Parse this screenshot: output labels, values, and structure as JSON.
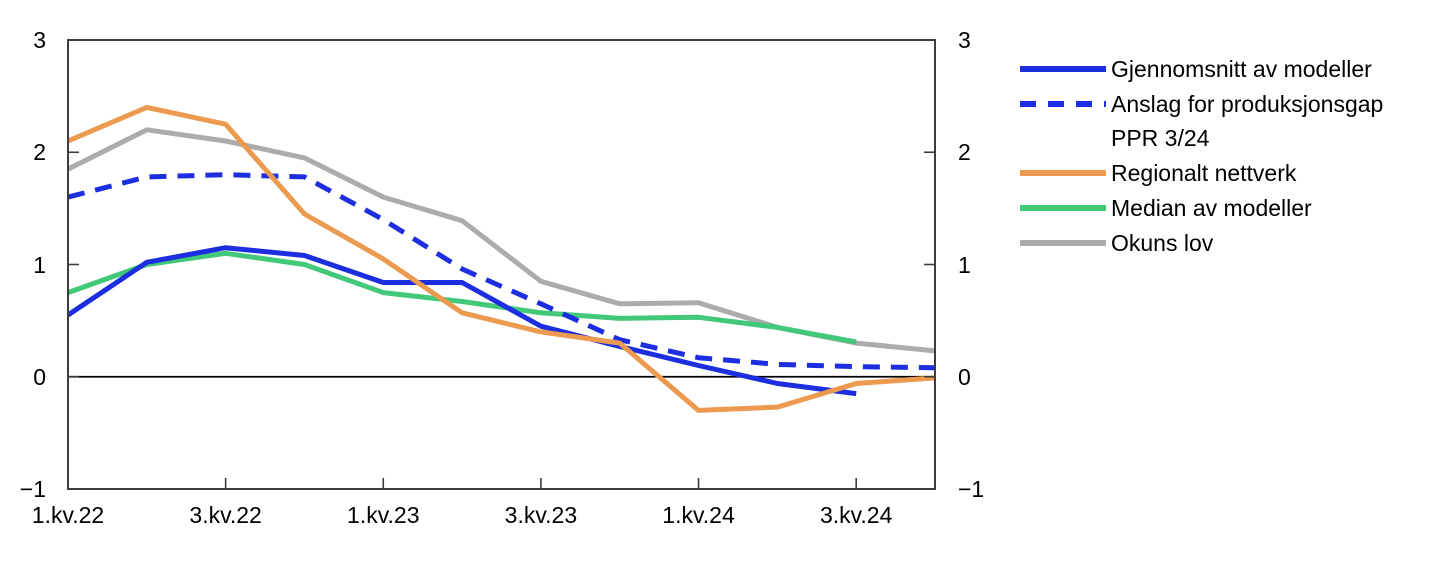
{
  "figure": {
    "background": "#ffffff",
    "axis_color": "#3d3d3d",
    "zero_line_color": "#000000",
    "text_color": "#000000"
  },
  "chart_data": {
    "type": "line",
    "title": "",
    "xlabel": "",
    "ylabel": "",
    "ylim": [
      -1,
      3
    ],
    "grid": false,
    "zero_line": true,
    "legend_position": "right",
    "x_quarters": [
      "1.kv.22",
      "2.kv.22",
      "3.kv.22",
      "4.kv.22",
      "1.kv.23",
      "2.kv.23",
      "3.kv.23",
      "4.kv.23",
      "1.kv.24",
      "2.kv.24",
      "3.kv.24",
      "4.kv.24"
    ],
    "x_ticks": [
      {
        "index": 0,
        "label": "1.kv.22"
      },
      {
        "index": 2,
        "label": "3.kv.22"
      },
      {
        "index": 4,
        "label": "1.kv.23"
      },
      {
        "index": 6,
        "label": "3.kv.23"
      },
      {
        "index": 8,
        "label": "1.kv.24"
      },
      {
        "index": 10,
        "label": "3.kv.24"
      }
    ],
    "y_ticks": [
      {
        "value": 3,
        "label": "3"
      },
      {
        "value": 2,
        "label": "2"
      },
      {
        "value": 1,
        "label": "1"
      },
      {
        "value": 0,
        "label": "0"
      },
      {
        "value": -1,
        "label": "−1"
      }
    ],
    "y_axis_sides": [
      "left",
      "right"
    ],
    "series": [
      {
        "name": "Gjennomsnitt av modeller",
        "label_lines": [
          "Gjennomsnitt av modeller"
        ],
        "color": "#1C2EE0",
        "style": "solid",
        "values": [
          0.55,
          1.02,
          1.15,
          1.08,
          0.84,
          0.84,
          0.45,
          0.27,
          0.1,
          -0.06,
          -0.15,
          null
        ]
      },
      {
        "name": "Anslag for produksjonsgap PPR 3/24",
        "label_lines": [
          "Anslag for produksjonsgap",
          "PPR 3/24"
        ],
        "color": "#1C2EE0",
        "style": "dashed",
        "values": [
          1.6,
          1.78,
          1.8,
          1.78,
          1.4,
          0.96,
          0.65,
          0.33,
          0.17,
          0.11,
          0.09,
          0.08
        ]
      },
      {
        "name": "Regionalt nettverk",
        "label_lines": [
          "Regionalt nettverk"
        ],
        "color": "#EB9A4F",
        "style": "solid",
        "values": [
          2.1,
          2.4,
          2.25,
          1.45,
          1.05,
          0.57,
          0.4,
          0.3,
          -0.3,
          -0.27,
          -0.06,
          -0.01
        ]
      },
      {
        "name": "Median av modeller",
        "label_lines": [
          "Median av modeller"
        ],
        "color": "#41C878",
        "style": "solid",
        "values": [
          0.75,
          1.0,
          1.1,
          1.0,
          0.75,
          0.67,
          0.57,
          0.52,
          0.53,
          0.44,
          0.31,
          null
        ]
      },
      {
        "name": "Okuns lov",
        "label_lines": [
          "Okuns lov"
        ],
        "color": "#ACACAC",
        "style": "solid",
        "values": [
          1.85,
          2.2,
          2.1,
          1.95,
          1.6,
          1.39,
          0.85,
          0.65,
          0.66,
          0.44,
          0.3,
          0.23
        ]
      }
    ]
  }
}
